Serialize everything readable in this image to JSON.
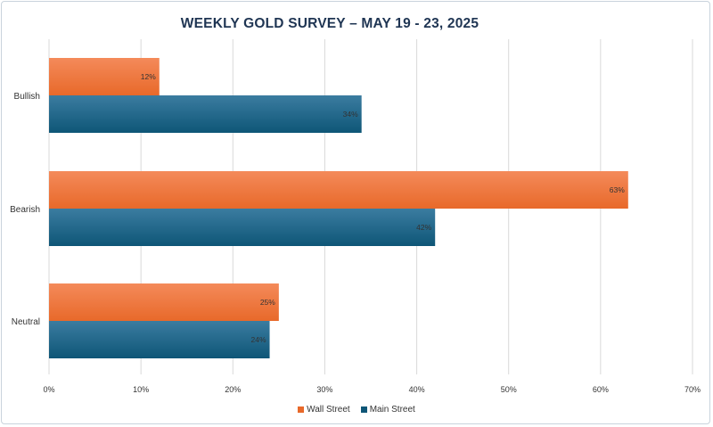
{
  "chart_data": {
    "type": "bar",
    "orientation": "horizontal",
    "title": "WEEKLY GOLD SURVEY – MAY 19 - 23, 2025",
    "categories": [
      "Bullish",
      "Bearish",
      "Neutral"
    ],
    "series": [
      {
        "name": "Wall Street",
        "values": [
          12,
          63,
          25
        ],
        "color": "#e8692a",
        "color_light": "#f48a5a"
      },
      {
        "name": "Main Street",
        "values": [
          34,
          42,
          24
        ],
        "color": "#0e5677",
        "color_light": "#3b7ca0"
      }
    ],
    "xlim": [
      0,
      70
    ],
    "xticks": [
      "0%",
      "10%",
      "20%",
      "30%",
      "40%",
      "50%",
      "60%",
      "70%"
    ],
    "value_suffix": "%",
    "grid": "vertical",
    "legend": "bottom"
  }
}
